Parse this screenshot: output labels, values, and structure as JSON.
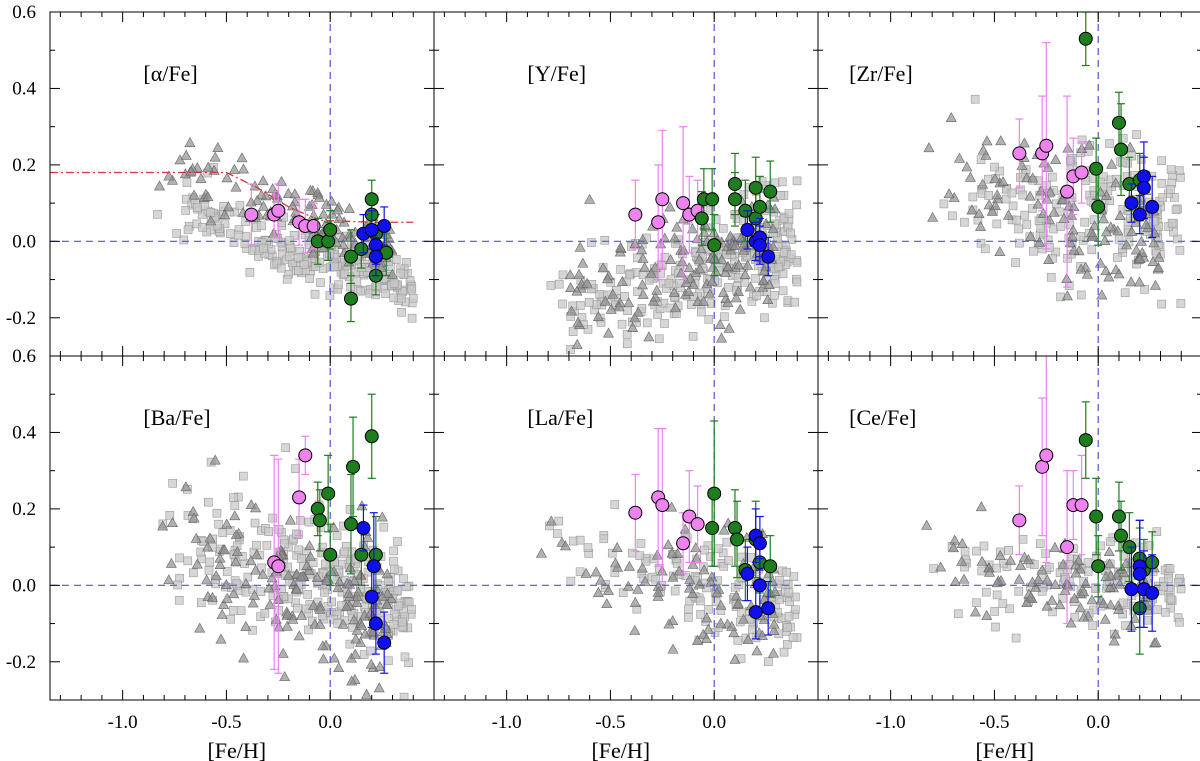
{
  "figure": {
    "type": "scatter"
  },
  "colors": {
    "field_dwarf": "#c8c8c8",
    "field_giant": "#909090",
    "oc_pink": "#ee82ee",
    "oc_green": "#1e7d1e",
    "oc_blue": "#1010ee",
    "reference_line": "#5555cc",
    "model_curve": "#dd3333"
  },
  "chart_data": {
    "type": "scatter",
    "layout": "2x3 grid of panels with shared axes",
    "xlabel": "[Fe/H]",
    "xlim": [
      -1.35,
      0.5
    ],
    "ylim": [
      -0.3,
      0.6
    ],
    "xticks": [
      -1.0,
      -0.5,
      0.0
    ],
    "xtick_labels": [
      "-1.0",
      "-0.5",
      "0.0"
    ],
    "yticks": [
      -0.2,
      0.0,
      0.2,
      0.4,
      0.6
    ],
    "ytick_labels": [
      "-0.2",
      "0.0",
      "0.2",
      "0.4",
      "0.6"
    ],
    "reference_lines": {
      "x": 0.0,
      "y": 0.0,
      "style": "dashed"
    },
    "panels": [
      {
        "label": "[α/Fe]",
        "label_pos": [
          -0.9,
          0.42
        ],
        "model_curve": [
          [
            -1.35,
            0.18
          ],
          [
            -0.5,
            0.18
          ],
          [
            -0.35,
            0.14
          ],
          [
            -0.2,
            0.09
          ],
          [
            -0.05,
            0.055
          ],
          [
            0.2,
            0.05
          ],
          [
            0.4,
            0.05
          ]
        ],
        "field_seed": 11,
        "field_dwarf_n": 260,
        "field_giant_n": 140,
        "field_dwarf_trend": [
          -0.05,
          -0.18
        ],
        "field_giant_trend": [
          0.04,
          -0.2
        ],
        "field_scatter": 0.04,
        "series": [
          {
            "name": "pink",
            "points": [
              [
                -0.38,
                0.07
              ],
              [
                -0.27,
                0.07
              ],
              [
                -0.25,
                0.08
              ],
              [
                -0.15,
                0.05
              ],
              [
                -0.12,
                0.04
              ],
              [
                -0.08,
                0.04
              ]
            ],
            "yerr": [
              0.08,
              0.06,
              0.07,
              0.06,
              0.07,
              0.06
            ]
          },
          {
            "name": "green",
            "points": [
              [
                -0.06,
                0.0
              ],
              [
                -0.01,
                0.0
              ],
              [
                0.0,
                0.03
              ],
              [
                0.1,
                -0.04
              ],
              [
                0.1,
                -0.15
              ],
              [
                0.15,
                -0.02
              ],
              [
                0.2,
                0.11
              ],
              [
                0.2,
                0.07
              ],
              [
                0.22,
                -0.09
              ],
              [
                0.22,
                0.02
              ],
              [
                0.27,
                -0.03
              ]
            ],
            "yerr": [
              0.06,
              0.05,
              0.05,
              0.07,
              0.06,
              0.05,
              0.05,
              0.05,
              0.05,
              0.05,
              0.06
            ]
          },
          {
            "name": "blue",
            "points": [
              [
                0.16,
                0.02
              ],
              [
                0.2,
                0.03
              ],
              [
                0.22,
                -0.01
              ],
              [
                0.22,
                -0.04
              ],
              [
                0.26,
                0.04
              ]
            ],
            "yerr": [
              0.05,
              0.05,
              0.05,
              0.05,
              0.05
            ]
          }
        ]
      },
      {
        "label": "[Y/Fe]",
        "label_pos": [
          -0.9,
          0.42
        ],
        "field_seed": 23,
        "field_dwarf_n": 280,
        "field_giant_n": 150,
        "field_dwarf_trend": [
          -0.06,
          0.15
        ],
        "field_giant_trend": [
          -0.05,
          0.1
        ],
        "field_scatter": 0.07,
        "series": [
          {
            "name": "pink",
            "points": [
              [
                -0.38,
                0.07
              ],
              [
                -0.27,
                0.05
              ],
              [
                -0.25,
                0.11
              ],
              [
                -0.15,
                0.1
              ],
              [
                -0.12,
                0.07
              ],
              [
                -0.08,
                0.08
              ]
            ],
            "yerr": [
              0.09,
              0.15,
              0.18,
              0.2,
              0.1,
              0.08
            ]
          },
          {
            "name": "green",
            "points": [
              [
                -0.06,
                0.06
              ],
              [
                -0.05,
                0.11
              ],
              [
                -0.01,
                0.11
              ],
              [
                0.0,
                -0.01
              ],
              [
                0.1,
                0.15
              ],
              [
                0.1,
                0.11
              ],
              [
                0.15,
                0.08
              ],
              [
                0.2,
                0.14
              ],
              [
                0.2,
                0.06
              ],
              [
                0.22,
                0.09
              ],
              [
                0.27,
                0.13
              ]
            ],
            "yerr": [
              0.07,
              0.08,
              0.08,
              0.08,
              0.08,
              0.07,
              0.08,
              0.08,
              0.08,
              0.08,
              0.08
            ]
          },
          {
            "name": "blue",
            "points": [
              [
                0.16,
                0.03
              ],
              [
                0.2,
                0.0
              ],
              [
                0.22,
                0.01
              ],
              [
                0.22,
                -0.01
              ],
              [
                0.26,
                -0.04
              ]
            ],
            "yerr": [
              0.05,
              0.05,
              0.05,
              0.05,
              0.05
            ]
          }
        ]
      },
      {
        "label": "[Zr/Fe]",
        "label_pos": [
          -1.2,
          0.42
        ],
        "field_seed": 37,
        "field_dwarf_n": 200,
        "field_giant_n": 120,
        "field_dwarf_trend": [
          0.07,
          -0.05
        ],
        "field_giant_trend": [
          0.05,
          -0.1
        ],
        "field_scatter": 0.09,
        "series": [
          {
            "name": "pink",
            "points": [
              [
                -0.38,
                0.23
              ],
              [
                -0.27,
                0.23
              ],
              [
                -0.25,
                0.25
              ],
              [
                -0.15,
                0.13
              ],
              [
                -0.12,
                0.17
              ],
              [
                -0.08,
                0.18
              ]
            ],
            "yerr": [
              0.09,
              0.15,
              0.27,
              0.25,
              0.1,
              0.08
            ]
          },
          {
            "name": "green",
            "points": [
              [
                -0.06,
                0.53
              ],
              [
                -0.01,
                0.19
              ],
              [
                0.0,
                0.09
              ],
              [
                0.1,
                0.31
              ],
              [
                0.11,
                0.24
              ],
              [
                0.15,
                0.15
              ],
              [
                0.2,
                0.16
              ]
            ],
            "yerr": [
              0.07,
              0.08,
              0.1,
              0.08,
              0.12,
              0.07,
              0.07
            ]
          },
          {
            "name": "blue",
            "points": [
              [
                0.16,
                0.1
              ],
              [
                0.2,
                0.07
              ],
              [
                0.22,
                0.17
              ],
              [
                0.22,
                0.14
              ],
              [
                0.26,
                0.09
              ]
            ],
            "yerr": [
              0.05,
              0.05,
              0.09,
              0.08,
              0.08
            ]
          }
        ]
      },
      {
        "label": "[Ba/Fe]",
        "label_pos": [
          -0.9,
          0.42
        ],
        "field_seed": 49,
        "field_dwarf_n": 300,
        "field_giant_n": 160,
        "field_dwarf_trend": [
          0.0,
          -0.15
        ],
        "field_giant_trend": [
          -0.02,
          -0.12
        ],
        "field_scatter": 0.09,
        "series": [
          {
            "name": "pink",
            "points": [
              [
                -0.27,
                0.06
              ],
              [
                -0.25,
                0.05
              ],
              [
                -0.15,
                0.23
              ],
              [
                -0.12,
                0.34
              ]
            ],
            "yerr": [
              0.28,
              0.28,
              0.1,
              0.05
            ]
          },
          {
            "name": "green",
            "points": [
              [
                -0.06,
                0.2
              ],
              [
                -0.05,
                0.17
              ],
              [
                -0.01,
                0.24
              ],
              [
                0.0,
                0.08
              ],
              [
                0.1,
                0.16
              ],
              [
                0.11,
                0.31
              ],
              [
                0.15,
                0.08
              ],
              [
                0.2,
                0.39
              ],
              [
                0.22,
                0.08
              ]
            ],
            "yerr": [
              0.07,
              0.08,
              0.1,
              0.08,
              0.13,
              0.13,
              0.08,
              0.11,
              0.1
            ]
          },
          {
            "name": "blue",
            "points": [
              [
                0.16,
                0.15
              ],
              [
                0.2,
                -0.03
              ],
              [
                0.21,
                0.05
              ],
              [
                0.22,
                -0.1
              ],
              [
                0.26,
                -0.15
              ]
            ],
            "yerr": [
              0.06,
              0.08,
              0.14,
              0.08,
              0.08
            ]
          }
        ]
      },
      {
        "label": "[La/Fe]",
        "label_pos": [
          -0.9,
          0.42
        ],
        "field_seed": 61,
        "field_dwarf_n": 150,
        "field_giant_n": 90,
        "field_dwarf_trend": [
          0.0,
          -0.15
        ],
        "field_giant_trend": [
          -0.02,
          -0.12
        ],
        "field_scatter": 0.07,
        "series": [
          {
            "name": "pink",
            "points": [
              [
                -0.38,
                0.19
              ],
              [
                -0.27,
                0.23
              ],
              [
                -0.25,
                0.21
              ],
              [
                -0.15,
                0.11
              ],
              [
                -0.12,
                0.18
              ],
              [
                -0.08,
                0.16
              ]
            ],
            "yerr": [
              0.1,
              0.18,
              0.2,
              0.08,
              0.12,
              0.1
            ]
          },
          {
            "name": "green",
            "points": [
              [
                -0.01,
                0.15
              ],
              [
                0.0,
                0.24
              ],
              [
                0.1,
                0.15
              ],
              [
                0.11,
                0.12
              ],
              [
                0.15,
                0.04
              ],
              [
                0.2,
                0.12
              ],
              [
                0.22,
                0.06
              ],
              [
                0.27,
                0.05
              ]
            ],
            "yerr": [
              0.1,
              0.19,
              0.1,
              0.1,
              0.08,
              0.1,
              0.08,
              0.08
            ]
          },
          {
            "name": "blue",
            "points": [
              [
                0.16,
                0.03
              ],
              [
                0.2,
                0.13
              ],
              [
                0.2,
                -0.07
              ],
              [
                0.22,
                0.11
              ],
              [
                0.22,
                0.0
              ],
              [
                0.26,
                -0.06
              ]
            ],
            "yerr": [
              0.07,
              0.07,
              0.07,
              0.07,
              0.07,
              0.07
            ]
          }
        ]
      },
      {
        "label": "[Ce/Fe]",
        "label_pos": [
          -1.2,
          0.42
        ],
        "field_seed": 73,
        "field_dwarf_n": 150,
        "field_giant_n": 90,
        "field_dwarf_trend": [
          0.02,
          -0.05
        ],
        "field_giant_trend": [
          0.0,
          -0.08
        ],
        "field_scatter": 0.06,
        "series": [
          {
            "name": "pink",
            "points": [
              [
                -0.38,
                0.17
              ],
              [
                -0.27,
                0.31
              ],
              [
                -0.25,
                0.34
              ],
              [
                -0.15,
                0.1
              ],
              [
                -0.12,
                0.21
              ],
              [
                -0.08,
                0.21
              ]
            ],
            "yerr": [
              0.09,
              0.18,
              0.28,
              0.2,
              0.09,
              0.13
            ]
          },
          {
            "name": "green",
            "points": [
              [
                -0.06,
                0.38
              ],
              [
                -0.01,
                0.18
              ],
              [
                0.0,
                0.05
              ],
              [
                0.1,
                0.18
              ],
              [
                0.11,
                0.13
              ],
              [
                0.15,
                0.1
              ],
              [
                0.2,
                0.07
              ],
              [
                0.2,
                -0.06
              ],
              [
                0.22,
                0.04
              ],
              [
                0.26,
                0.06
              ]
            ],
            "yerr": [
              0.1,
              0.1,
              0.08,
              0.09,
              0.09,
              0.09,
              0.08,
              0.12,
              0.08,
              0.08
            ]
          },
          {
            "name": "blue",
            "points": [
              [
                0.16,
                -0.01
              ],
              [
                0.2,
                0.05
              ],
              [
                0.2,
                0.03
              ],
              [
                0.22,
                -0.01
              ],
              [
                0.26,
                -0.02
              ]
            ],
            "yerr": [
              0.11,
              0.12,
              0.14,
              0.1,
              0.1
            ]
          }
        ]
      }
    ]
  }
}
